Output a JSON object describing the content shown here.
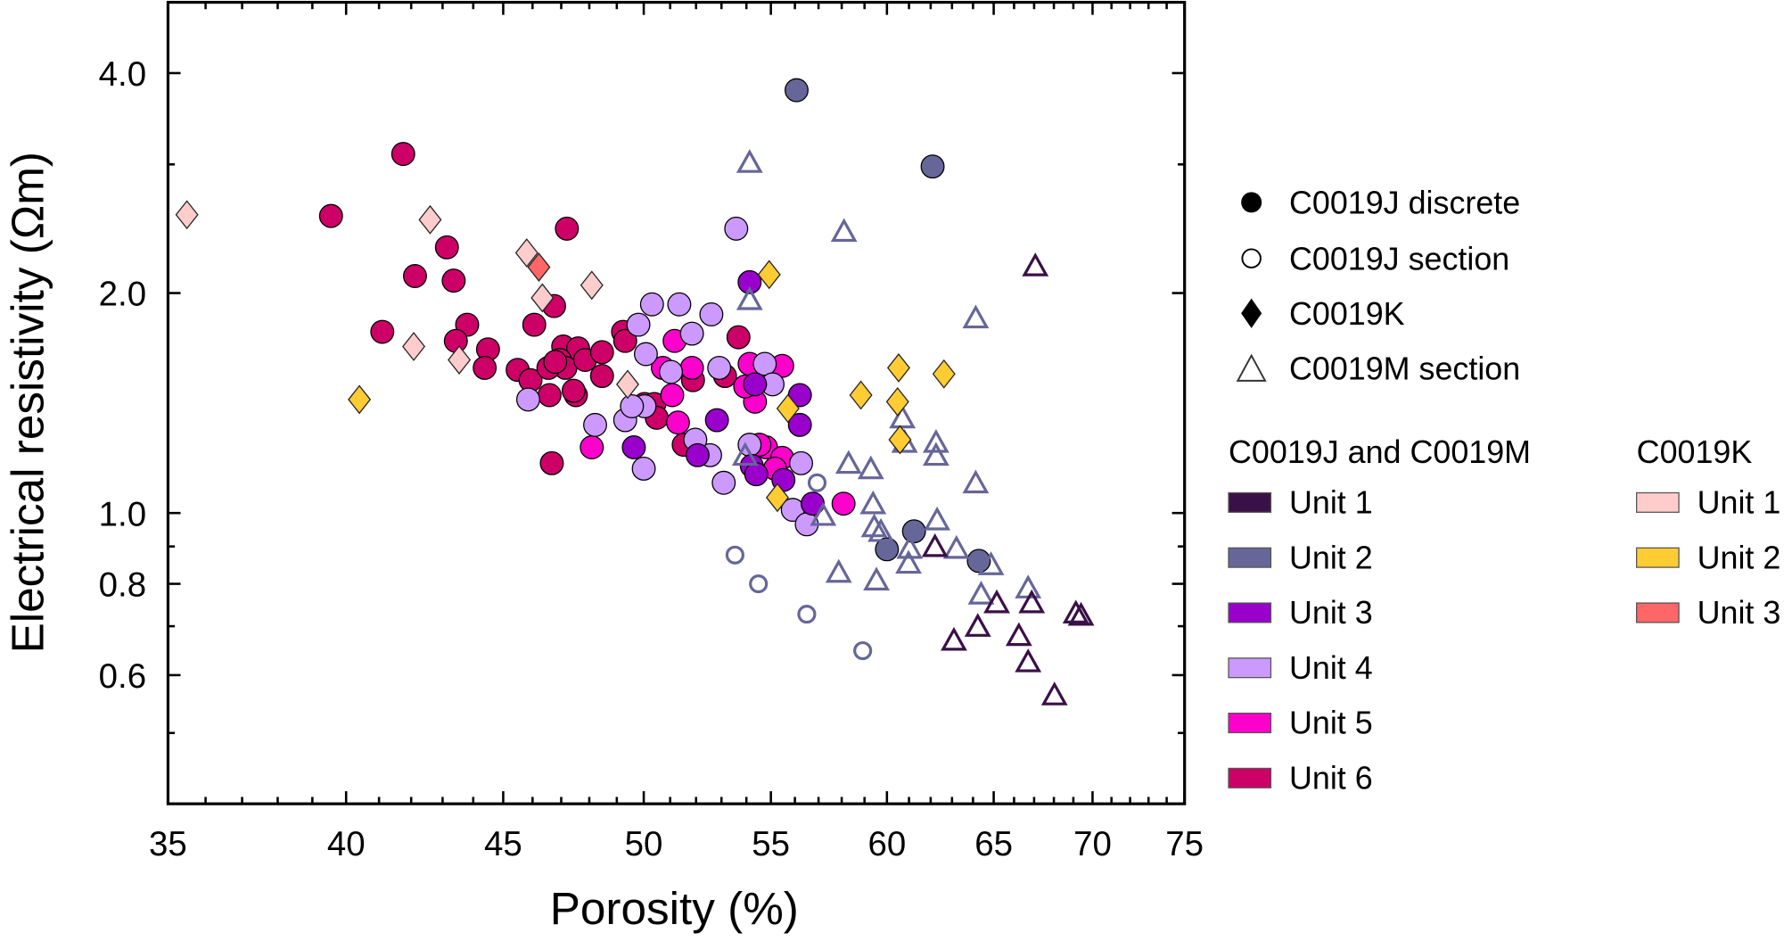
{
  "chart_data": {
    "type": "scatter",
    "xlabel": "Porosity (%)",
    "ylabel": "Electrical resistivity (Ωm)",
    "xscale": "log",
    "yscale": "log",
    "xlim": [
      35,
      75
    ],
    "ylim": [
      0.4,
      5
    ],
    "xticks": [
      "35",
      "40",
      "45",
      "50",
      "55",
      "60",
      "65",
      "70",
      "75"
    ],
    "yticks": [
      "4.0",
      "2.0",
      "1.0",
      "0.8",
      "0.6"
    ],
    "grid": false,
    "legend_position": "right",
    "marker_legend": [
      {
        "marker": "circle-filled",
        "label": "C0019J discrete"
      },
      {
        "marker": "circle-open",
        "label": "C0019J section"
      },
      {
        "marker": "diamond",
        "label": "C0019K"
      },
      {
        "marker": "triangle-open",
        "label": "C0019M section"
      }
    ],
    "unit_legend_groups": [
      {
        "title": "C0019J and C0019M",
        "units": [
          {
            "label": "Unit 1",
            "color": "#3a1048"
          },
          {
            "label": "Unit 2",
            "color": "#666699"
          },
          {
            "label": "Unit 3",
            "color": "#9900cc"
          },
          {
            "label": "Unit 4",
            "color": "#cc99ff"
          },
          {
            "label": "Unit 5",
            "color": "#ff00cc"
          },
          {
            "label": "Unit 6",
            "color": "#cc0066"
          }
        ]
      },
      {
        "title": "C0019K",
        "units": [
          {
            "label": "Unit 1",
            "color": "#ffcccc"
          },
          {
            "label": "Unit 2",
            "color": "#ffcc33"
          },
          {
            "label": "Unit 3",
            "color": "#ff6666"
          }
        ]
      }
    ],
    "series": [
      {
        "name": "C0019J discrete Unit 6",
        "marker": "circle-filled",
        "color": "#cc0066",
        "points": [
          [
            41.75,
            3.1
          ],
          [
            39.55,
            2.55
          ],
          [
            47.2,
            2.45
          ],
          [
            43.14,
            2.31
          ],
          [
            42.12,
            2.11
          ],
          [
            43.36,
            2.08
          ],
          [
            46.75,
            1.92
          ],
          [
            46.06,
            1.81
          ],
          [
            41.1,
            1.77
          ],
          [
            43.8,
            1.81
          ],
          [
            43.43,
            1.72
          ],
          [
            44.49,
            1.675
          ],
          [
            44.38,
            1.58
          ],
          [
            45.49,
            1.57
          ],
          [
            45.93,
            1.52
          ],
          [
            46.59,
            1.45
          ],
          [
            47.52,
            1.45
          ],
          [
            47.07,
            1.69
          ],
          [
            47.6,
            1.68
          ],
          [
            46.95,
            1.62
          ],
          [
            47.15,
            1.58
          ],
          [
            47.85,
            1.62
          ],
          [
            48.46,
            1.66
          ],
          [
            48.46,
            1.54
          ],
          [
            49.23,
            1.77
          ],
          [
            49.31,
            1.72
          ],
          [
            46.55,
            1.58
          ],
          [
            47.44,
            1.47
          ],
          [
            53.68,
            1.74
          ],
          [
            50.03,
            1.41
          ],
          [
            50.4,
            1.41
          ],
          [
            50.49,
            1.35
          ],
          [
            51.88,
            1.52
          ],
          [
            53.14,
            1.54
          ],
          [
            51.52,
            1.24
          ],
          [
            46.67,
            1.17
          ],
          [
            46.79,
            1.61
          ]
        ]
      },
      {
        "name": "C0019J discrete Unit 5",
        "marker": "circle-filled",
        "color": "#ff00cc",
        "points": [
          [
            50.72,
            1.58
          ],
          [
            51.17,
            1.72
          ],
          [
            51.84,
            1.58
          ],
          [
            51.08,
            1.45
          ],
          [
            51.3,
            1.33
          ],
          [
            48.09,
            1.23
          ],
          [
            54.17,
            1.48
          ],
          [
            54.35,
            1.42
          ],
          [
            54.8,
            1.23
          ],
          [
            55.47,
            1.19
          ],
          [
            55.17,
            1.15
          ],
          [
            54.13,
            1.6
          ],
          [
            53.95,
            1.49
          ],
          [
            58.08,
            1.03
          ],
          [
            54.53,
            1.24
          ],
          [
            55.47,
            1.59
          ]
        ]
      },
      {
        "name": "C0019J discrete Unit 4",
        "marker": "circle-filled",
        "color": "#cc99ff",
        "points": [
          [
            53.59,
            2.45
          ],
          [
            50.31,
            1.93
          ],
          [
            51.35,
            1.93
          ],
          [
            52.6,
            1.87
          ],
          [
            51.84,
            1.76
          ],
          [
            49.8,
            1.81
          ],
          [
            45.85,
            1.43
          ],
          [
            48.21,
            1.32
          ],
          [
            49.31,
            1.34
          ],
          [
            50.03,
            1.4
          ],
          [
            49.56,
            1.4
          ],
          [
            50.08,
            1.65
          ],
          [
            51.03,
            1.56
          ],
          [
            52.91,
            1.58
          ],
          [
            54.75,
            1.6
          ],
          [
            55.07,
            1.5
          ],
          [
            54.13,
            1.24
          ],
          [
            50.0,
            1.15
          ],
          [
            52.55,
            1.2
          ],
          [
            53.09,
            1.1
          ],
          [
            51.97,
            1.26
          ],
          [
            55.91,
            1.01
          ],
          [
            56.5,
            0.965
          ],
          [
            56.26,
            1.17
          ]
        ]
      },
      {
        "name": "C0019J discrete Unit 3",
        "marker": "circle-filled",
        "color": "#9900cc",
        "points": [
          [
            54.13,
            2.07
          ],
          [
            49.63,
            1.23
          ],
          [
            52.82,
            1.34
          ],
          [
            56.21,
            1.45
          ],
          [
            56.21,
            1.32
          ],
          [
            54.35,
            1.5
          ],
          [
            54.22,
            1.16
          ],
          [
            54.4,
            1.13
          ],
          [
            52.06,
            1.2
          ],
          [
            56.75,
            1.03
          ],
          [
            55.52,
            1.11
          ]
        ]
      },
      {
        "name": "C0019J discrete Unit 2",
        "marker": "circle-filled",
        "color": "#666699",
        "points": [
          [
            56.07,
            3.79
          ],
          [
            62.09,
            2.98
          ],
          [
            61.23,
            0.944
          ],
          [
            60.0,
            0.892
          ],
          [
            64.28,
            0.86
          ]
        ]
      },
      {
        "name": "C0019J section Unit 2",
        "marker": "circle-open",
        "color": "#666699",
        "points": [
          [
            53.54,
            0.876
          ],
          [
            54.49,
            0.8
          ],
          [
            56.5,
            0.727
          ],
          [
            58.92,
            0.648
          ],
          [
            56.94,
            1.1
          ]
        ]
      },
      {
        "name": "C0019M section Unit 2",
        "marker": "triangle-open",
        "color": "#666699",
        "points": [
          [
            54.13,
            3.02
          ],
          [
            58.1,
            2.43
          ],
          [
            54.13,
            1.96
          ],
          [
            64.13,
            1.85
          ],
          [
            60.7,
            1.35
          ],
          [
            58.3,
            1.17
          ],
          [
            59.28,
            1.15
          ],
          [
            60.8,
            1.25
          ],
          [
            62.25,
            1.25
          ],
          [
            62.25,
            1.2
          ],
          [
            64.13,
            1.1
          ],
          [
            59.38,
            1.03
          ],
          [
            59.43,
            0.958
          ],
          [
            59.73,
            0.944
          ],
          [
            62.3,
            0.979
          ],
          [
            63.21,
            0.895
          ],
          [
            61.03,
            0.895
          ],
          [
            60.98,
            0.854
          ],
          [
            57.87,
            0.83
          ],
          [
            59.53,
            0.81
          ],
          [
            64.87,
            0.85
          ],
          [
            64.39,
            0.775
          ],
          [
            66.7,
            0.79
          ],
          [
            57.2,
            0.993
          ],
          [
            53.95,
            1.2
          ]
        ]
      },
      {
        "name": "C0019M section Unit 1",
        "marker": "triangle-open",
        "color": "#3a1048",
        "points": [
          [
            67.06,
            2.18
          ],
          [
            62.2,
            0.9
          ],
          [
            65.15,
            0.754
          ],
          [
            66.88,
            0.754
          ],
          [
            64.23,
            0.7
          ],
          [
            63.09,
            0.67
          ],
          [
            66.24,
            0.68
          ],
          [
            66.7,
            0.626
          ],
          [
            68.03,
            0.564
          ],
          [
            69.13,
            0.73
          ],
          [
            69.4,
            0.725
          ]
        ]
      },
      {
        "name": "C0019K Unit 1",
        "marker": "diamond",
        "color": "#ffcccc",
        "points": [
          [
            35.5,
            2.56
          ],
          [
            42.6,
            2.52
          ],
          [
            45.8,
            2.27
          ],
          [
            48.09,
            2.05
          ],
          [
            46.34,
            1.97
          ],
          [
            42.08,
            1.69
          ],
          [
            43.54,
            1.62
          ],
          [
            49.4,
            1.5
          ]
        ]
      },
      {
        "name": "C0019K Unit 3",
        "marker": "diamond",
        "color": "#ff6666",
        "points": [
          [
            46.22,
            2.17
          ]
        ]
      },
      {
        "name": "C0019K Unit 2",
        "marker": "diamond",
        "color": "#ffcc33",
        "points": [
          [
            40.4,
            1.43
          ],
          [
            54.93,
            2.12
          ],
          [
            60.53,
            1.58
          ],
          [
            62.62,
            1.55
          ],
          [
            58.84,
            1.45
          ],
          [
            60.48,
            1.42
          ],
          [
            55.71,
            1.39
          ],
          [
            60.59,
            1.26
          ],
          [
            55.27,
            1.05
          ]
        ]
      }
    ]
  }
}
